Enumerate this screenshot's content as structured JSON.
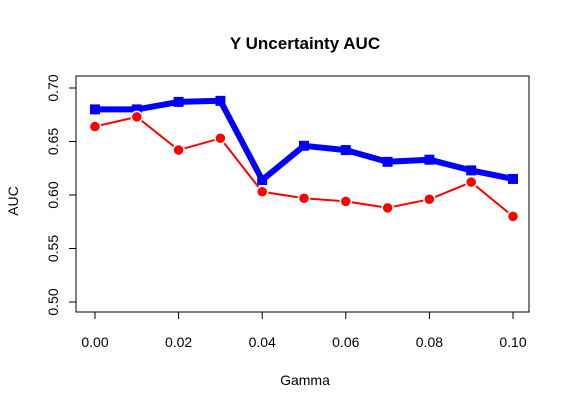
{
  "chart_data": {
    "type": "line",
    "title": "Y Uncertainty AUC",
    "xlabel": "Gamma",
    "ylabel": "AUC",
    "xlim": [
      0.0,
      0.1
    ],
    "ylim": [
      0.5,
      0.7
    ],
    "x_ticks": [
      "0.00",
      "0.02",
      "0.04",
      "0.06",
      "0.08",
      "0.10"
    ],
    "y_ticks": [
      "0.50",
      "0.55",
      "0.60",
      "0.65",
      "0.70"
    ],
    "x": [
      0.0,
      0.01,
      0.02,
      0.03,
      0.04,
      0.05,
      0.06,
      0.07,
      0.08,
      0.09,
      0.1
    ],
    "grid": false,
    "series": [
      {
        "color": "#0000ff",
        "marker": "square",
        "values": [
          0.68,
          0.68,
          0.687,
          0.688,
          0.614,
          0.646,
          0.642,
          0.631,
          0.633,
          0.623,
          0.615
        ]
      },
      {
        "color": "#ff0000",
        "marker": "circle",
        "values": [
          0.664,
          0.673,
          0.642,
          0.653,
          0.603,
          0.597,
          0.594,
          0.588,
          0.596,
          0.612,
          0.58
        ]
      }
    ]
  }
}
